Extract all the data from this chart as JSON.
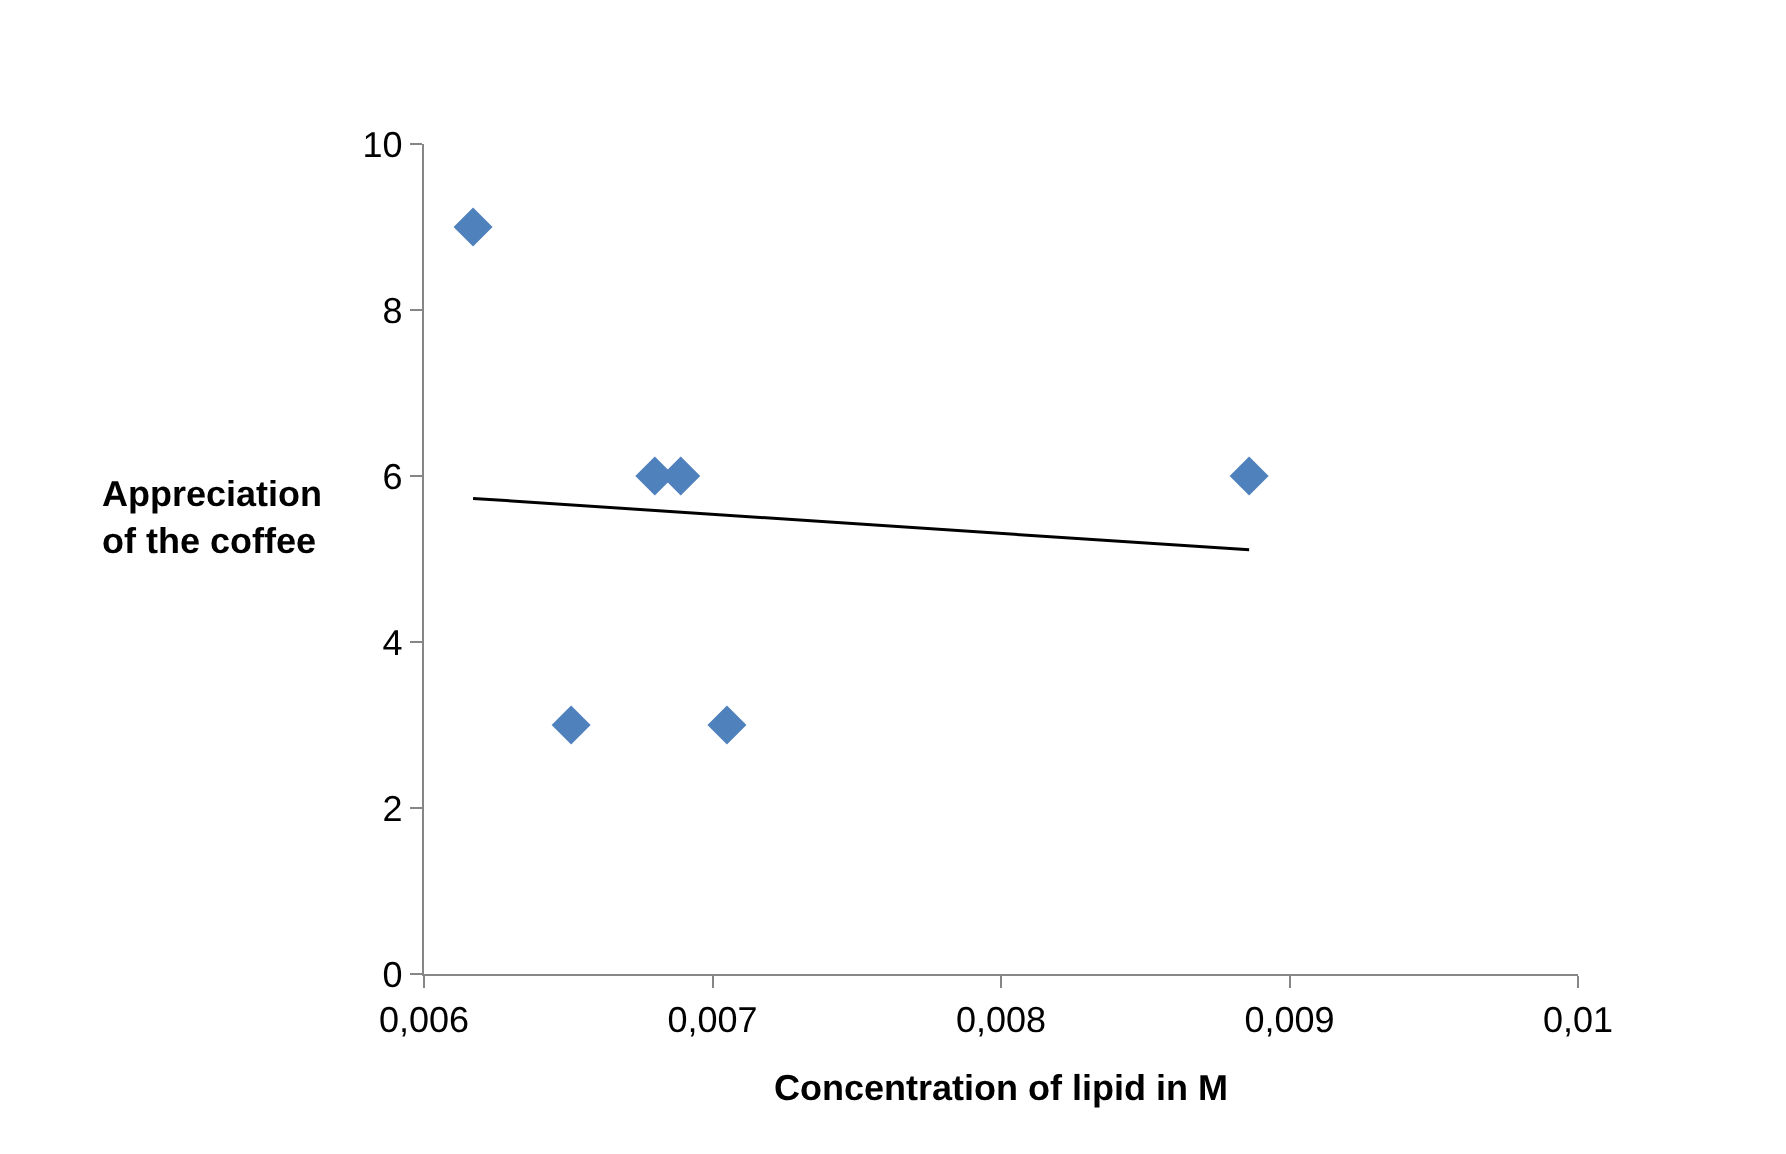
{
  "chart_data": {
    "type": "scatter",
    "xlabel": "Concentration of lipid in M",
    "ylabel": "Appreciation\nof the coffee",
    "xlim": [
      0.006,
      0.01
    ],
    "xticks": [
      {
        "value": 0.006,
        "label": "0,006"
      },
      {
        "value": 0.007,
        "label": "0,007"
      },
      {
        "value": 0.008,
        "label": "0,008"
      },
      {
        "value": 0.009,
        "label": "0,009"
      },
      {
        "value": 0.01,
        "label": "0,01"
      }
    ],
    "ylim": [
      0,
      10
    ],
    "yticks": [
      0,
      2,
      4,
      6,
      8,
      10
    ],
    "marker": "diamond",
    "series": [
      {
        "color": "#4f81bd",
        "x": [
          0.00617,
          0.00651,
          0.0068,
          0.00689,
          0.00705,
          0.00886
        ],
        "values": [
          9,
          3,
          6,
          6,
          3,
          6
        ]
      },
      {
        "type": "line",
        "color": "#000000",
        "marker": "none",
        "x": [
          0.00617,
          0.00886
        ],
        "values": [
          5.73,
          5.11
        ]
      }
    ]
  }
}
